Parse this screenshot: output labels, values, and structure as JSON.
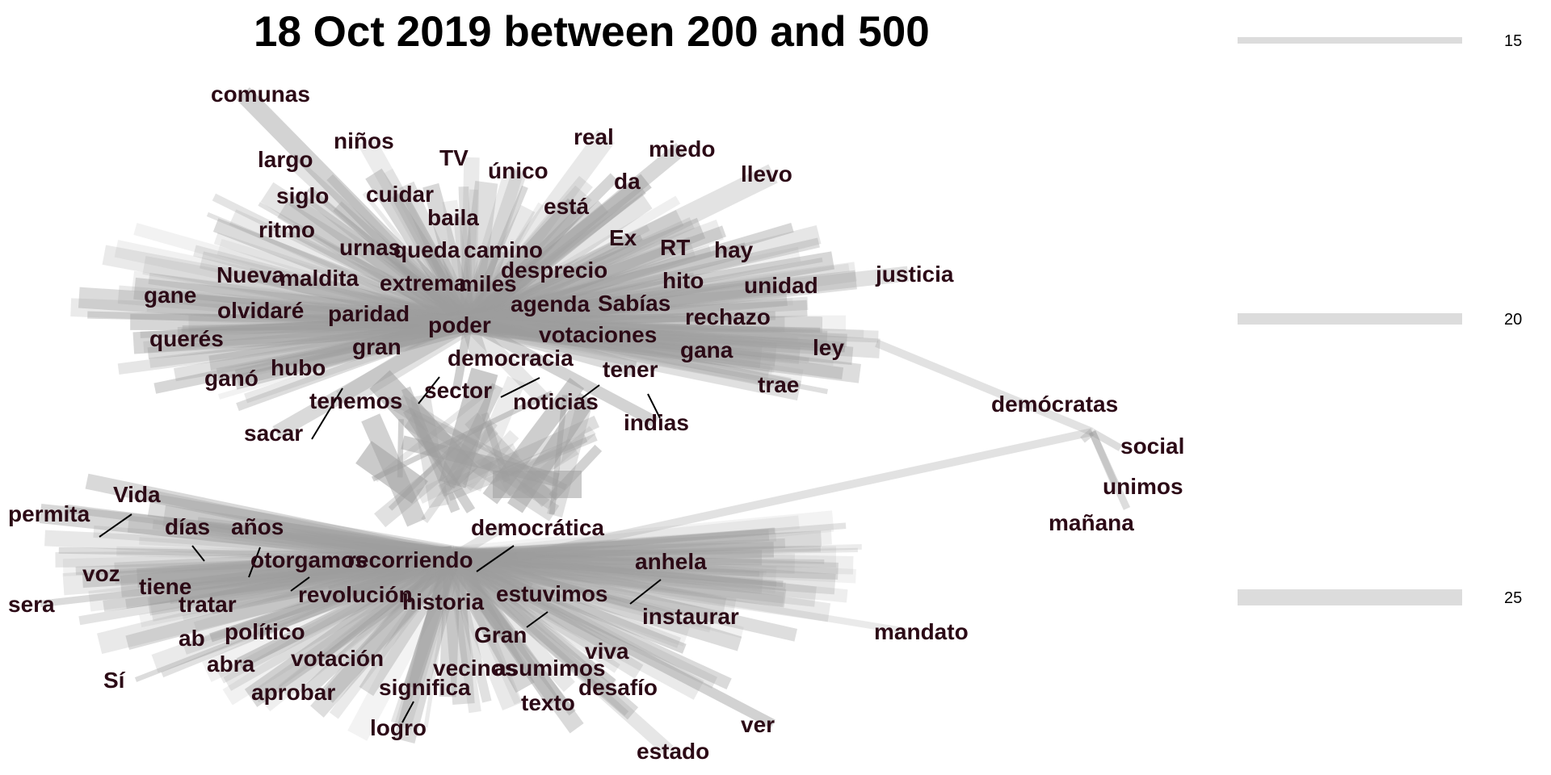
{
  "title": "18 Oct 2019 between 200 and 500",
  "colors": {
    "word": "#2c0a16",
    "edge": "#9e9e9e",
    "legend_bar": "#dcdcdc",
    "connector": "#000000"
  },
  "legend": {
    "description": "edge width scale",
    "items": [
      {
        "label": "15",
        "value": 15
      },
      {
        "label": "20",
        "value": 20
      },
      {
        "label": "25",
        "value": 25
      }
    ]
  },
  "clusters": {
    "top": {
      "words": [
        "comunas",
        "niños",
        "largo",
        "TV",
        "único",
        "real",
        "miedo",
        "da",
        "llevo",
        "siglo",
        "cuidar",
        "está",
        "baila",
        "ritmo",
        "urnas",
        "queda",
        "camino",
        "Ex",
        "RT",
        "hay",
        "justicia",
        "Nueva",
        "maldita",
        "extrema",
        "miles",
        "desprecio",
        "hito",
        "unidad",
        "gane",
        "olvidaré",
        "paridad",
        "agenda",
        "Sabías",
        "rechazo",
        "querés",
        "poder",
        "votaciones",
        "gran",
        "gana",
        "ley",
        "democracia",
        "hubo",
        "ganó",
        "tener",
        "trae",
        "tenemos",
        "sector",
        "noticias",
        "indias",
        "sacar"
      ]
    },
    "bottom": {
      "words": [
        "Vida",
        "permita",
        "días",
        "años",
        "democrática",
        "otorgamos",
        "recorriendo",
        "anhela",
        "voz",
        "tiene",
        "revolución",
        "estuvimos",
        "sera",
        "tratar",
        "historia",
        "instaurar",
        "político",
        "Gran",
        "mandato",
        "ab",
        "abra",
        "votación",
        "viva",
        "Sí",
        "vecinos",
        "asumimos",
        "significa",
        "desafío",
        "aprobar",
        "texto",
        "ver",
        "logro",
        "estado"
      ]
    },
    "right": {
      "words": [
        "demócratas",
        "social",
        "unimos",
        "mañana"
      ]
    }
  }
}
